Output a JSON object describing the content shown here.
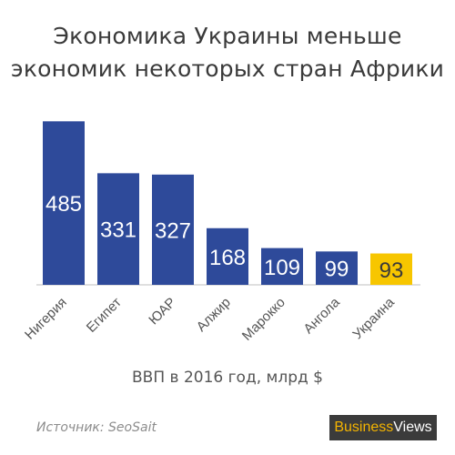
{
  "chart_data": {
    "type": "bar",
    "title_lines": [
      "Экономика Украины меньше",
      "экономик некоторых стран Африки"
    ],
    "categories": [
      "Нигерия",
      "Египет",
      "ЮАР",
      "Алжир",
      "Марокко",
      "Ангола",
      "Украина"
    ],
    "values": [
      485,
      331,
      327,
      168,
      109,
      99,
      93
    ],
    "value_labels": [
      "485",
      "331",
      "327",
      "168",
      "109",
      "99",
      "93"
    ],
    "xlabel": "ВВП в 2016 год, млрд $",
    "ylim": [
      0,
      500
    ],
    "grid": false,
    "legend": "none",
    "colors": {
      "default_bar": "#2e4a9a",
      "highlight_bar": "#f7c600",
      "bar_label": "#ffffff",
      "highlight_label": "#3a3a3a",
      "axis": "#bfbfbf",
      "tick_label": "#555555"
    },
    "highlight_category": "Украина"
  },
  "footer": {
    "source": "Источник: SeoSait",
    "brand_part1": "Business",
    "brand_part2": "Views"
  }
}
